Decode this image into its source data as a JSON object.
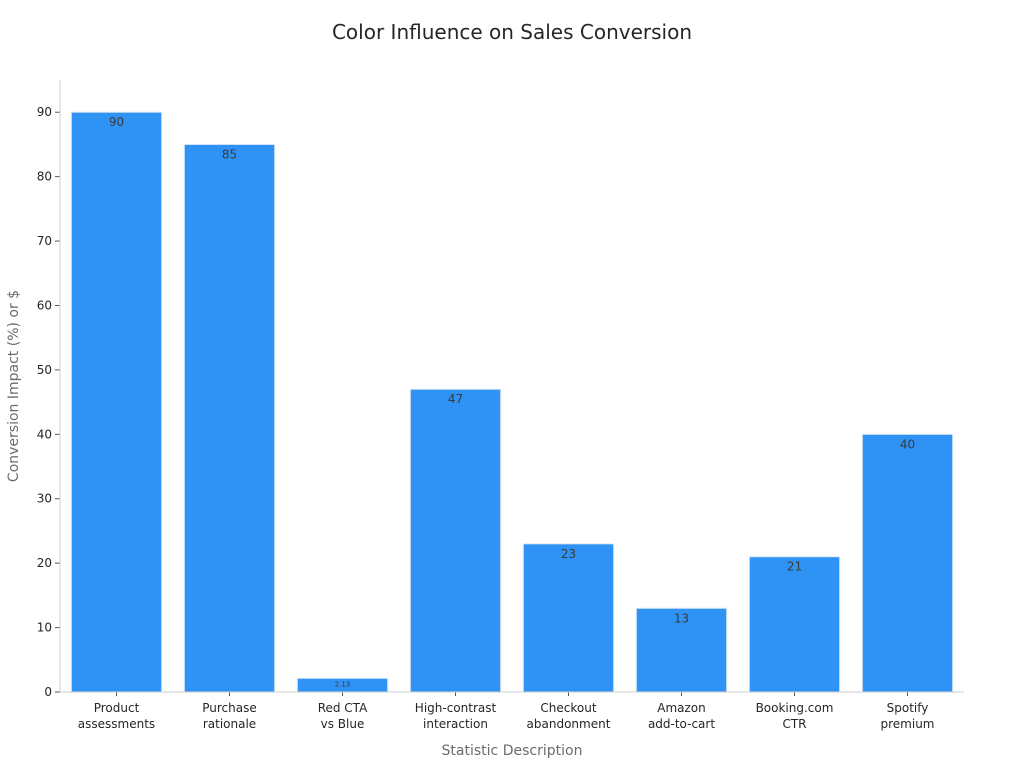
{
  "chart_data": {
    "type": "bar",
    "title": "Color Influence on Sales Conversion",
    "xlabel": "Statistic Description",
    "ylabel": "Conversion Impact (%) or $",
    "categories": [
      [
        "Product",
        "assessments"
      ],
      [
        "Purchase",
        "rationale"
      ],
      [
        "Red CTA",
        "vs Blue"
      ],
      [
        "High-contrast",
        "interaction"
      ],
      [
        "Checkout",
        "abandonment"
      ],
      [
        "Amazon",
        "add-to-cart"
      ],
      [
        "Booking.com",
        "CTR"
      ],
      [
        "Spotify",
        "premium"
      ]
    ],
    "values": [
      90,
      85,
      2.13,
      47,
      23,
      13,
      21,
      40
    ],
    "value_labels": [
      "90",
      "85",
      "2.13",
      "47",
      "23",
      "13",
      "21",
      "40"
    ],
    "ylim": [
      0,
      95
    ],
    "yticks": [
      0,
      10,
      20,
      30,
      40,
      50,
      60,
      70,
      80,
      90
    ],
    "grid": false,
    "bar_color": "#2f93f5",
    "bar_edge_color": "#dfe9f5",
    "axis_color": "#cfcfcf"
  }
}
